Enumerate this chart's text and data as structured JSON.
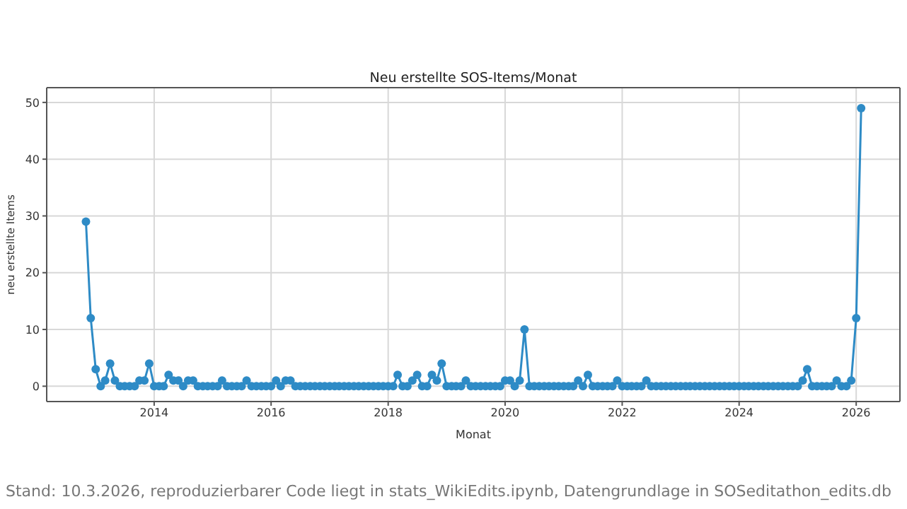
{
  "chart_data": {
    "type": "line",
    "title": "Neu erstellte SOS-Items/Monat",
    "xlabel": "Monat",
    "ylabel": "neu erstellte Items",
    "x": [
      "2012-11",
      "2012-12",
      "2013-01",
      "2013-02",
      "2013-03",
      "2013-04",
      "2013-05",
      "2013-06",
      "2013-07",
      "2013-08",
      "2013-09",
      "2013-10",
      "2013-11",
      "2013-12",
      "2014-01",
      "2014-02",
      "2014-03",
      "2014-04",
      "2014-05",
      "2014-06",
      "2014-07",
      "2014-08",
      "2014-09",
      "2014-10",
      "2014-11",
      "2014-12",
      "2015-01",
      "2015-02",
      "2015-03",
      "2015-04",
      "2015-05",
      "2015-06",
      "2015-07",
      "2015-08",
      "2015-09",
      "2015-10",
      "2015-11",
      "2015-12",
      "2016-01",
      "2016-02",
      "2016-03",
      "2016-04",
      "2016-05",
      "2016-06",
      "2016-07",
      "2016-08",
      "2016-09",
      "2016-10",
      "2016-11",
      "2016-12",
      "2017-01",
      "2017-02",
      "2017-03",
      "2017-04",
      "2017-05",
      "2017-06",
      "2017-07",
      "2017-08",
      "2017-09",
      "2017-10",
      "2017-11",
      "2017-12",
      "2018-01",
      "2018-02",
      "2018-03",
      "2018-04",
      "2018-05",
      "2018-06",
      "2018-07",
      "2018-08",
      "2018-09",
      "2018-10",
      "2018-11",
      "2018-12",
      "2019-01",
      "2019-02",
      "2019-03",
      "2019-04",
      "2019-05",
      "2019-06",
      "2019-07",
      "2019-08",
      "2019-09",
      "2019-10",
      "2019-11",
      "2019-12",
      "2020-01",
      "2020-02",
      "2020-03",
      "2020-04",
      "2020-05",
      "2020-06",
      "2020-07",
      "2020-08",
      "2020-09",
      "2020-10",
      "2020-11",
      "2020-12",
      "2021-01",
      "2021-02",
      "2021-03",
      "2021-04",
      "2021-05",
      "2021-06",
      "2021-07",
      "2021-08",
      "2021-09",
      "2021-10",
      "2021-11",
      "2021-12",
      "2022-01",
      "2022-02",
      "2022-03",
      "2022-04",
      "2022-05",
      "2022-06",
      "2022-07",
      "2022-08",
      "2022-09",
      "2022-10",
      "2022-11",
      "2022-12",
      "2023-01",
      "2023-02",
      "2023-03",
      "2023-04",
      "2023-05",
      "2023-06",
      "2023-07",
      "2023-08",
      "2023-09",
      "2023-10",
      "2023-11",
      "2023-12",
      "2024-01",
      "2024-02",
      "2024-03",
      "2024-04",
      "2024-05",
      "2024-06",
      "2024-07",
      "2024-08",
      "2024-09",
      "2024-10",
      "2024-11",
      "2024-12",
      "2025-01",
      "2025-02",
      "2025-03",
      "2025-04",
      "2025-05",
      "2025-06",
      "2025-07",
      "2025-08",
      "2025-09",
      "2025-10",
      "2025-11",
      "2025-12",
      "2026-01",
      "2026-02"
    ],
    "series": [
      {
        "color": "#2e8bc6",
        "values": [
          29,
          12,
          3,
          0,
          1,
          4,
          1,
          0,
          0,
          0,
          0,
          1,
          1,
          4,
          0,
          0,
          0,
          2,
          1,
          1,
          0,
          1,
          1,
          0,
          0,
          0,
          0,
          0,
          1,
          0,
          0,
          0,
          0,
          1,
          0,
          0,
          0,
          0,
          0,
          1,
          0,
          1,
          1,
          0,
          0,
          0,
          0,
          0,
          0,
          0,
          0,
          0,
          0,
          0,
          0,
          0,
          0,
          0,
          0,
          0,
          0,
          0,
          0,
          0,
          2,
          0,
          0,
          1,
          2,
          0,
          0,
          2,
          1,
          4,
          0,
          0,
          0,
          0,
          1,
          0,
          0,
          0,
          0,
          0,
          0,
          0,
          1,
          1,
          0,
          1,
          10,
          0,
          0,
          0,
          0,
          0,
          0,
          0,
          0,
          0,
          0,
          1,
          0,
          2,
          0,
          0,
          0,
          0,
          0,
          1,
          0,
          0,
          0,
          0,
          0,
          1,
          0,
          0,
          0,
          0,
          0,
          0,
          0,
          0,
          0,
          0,
          0,
          0,
          0,
          0,
          0,
          0,
          0,
          0,
          0,
          0,
          0,
          0,
          0,
          0,
          0,
          0,
          0,
          0,
          0,
          0,
          0,
          1,
          3,
          0,
          0,
          0,
          0,
          0,
          1,
          0,
          0,
          1,
          12,
          49
        ]
      }
    ],
    "xlim": [
      "2012-03",
      "2026-10"
    ],
    "xticks": [
      "2014",
      "2016",
      "2018",
      "2020",
      "2022",
      "2024",
      "2026"
    ],
    "ylim": [
      -2.7,
      52.6
    ],
    "yticks": [
      0,
      10,
      20,
      30,
      40,
      50
    ],
    "grid": true,
    "marker": "circle",
    "line_style": "solid",
    "annotations": [
      "Stand: 10.3.2026, reproduzierbarer Code liegt in stats_WikiEdits.ipynb, Datengrundlage in SOSeditathon_edits.db"
    ]
  }
}
